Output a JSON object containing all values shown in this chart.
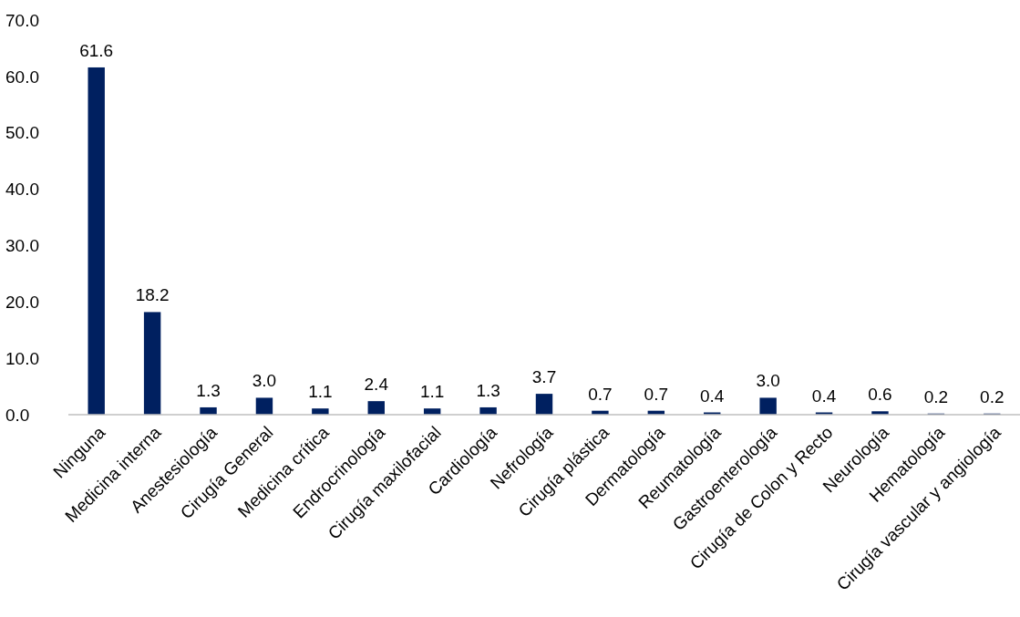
{
  "chart_data": {
    "type": "bar",
    "categories": [
      "Ninguna",
      "Medicina interna",
      "Anestesiología",
      "Cirugía General",
      "Medicina crítica",
      "Endrocrinología",
      "Cirugía maxilofacial",
      "Cardiología",
      "Nefrología",
      "Cirugía plástica",
      "Dermatología",
      "Reumatología",
      "Gastroenterología",
      "Cirugía de Colon y Recto",
      "Neurología",
      "Hematología",
      "Cirugía vascular y angiología"
    ],
    "values": [
      61.6,
      18.2,
      1.3,
      3.0,
      1.1,
      2.4,
      1.1,
      1.3,
      3.7,
      0.7,
      0.7,
      0.4,
      3.0,
      0.4,
      0.6,
      0.2,
      0.2
    ],
    "value_labels": [
      "61.6",
      "18.2",
      "1.3",
      "3.0",
      "1.1",
      "2.4",
      "1.1",
      "1.3",
      "3.7",
      "0.7",
      "0.7",
      "0.4",
      "3.0",
      "0.4",
      "0.6",
      "0.2",
      "0.2"
    ],
    "color": "#002060",
    "ylim": [
      0,
      70
    ],
    "yticks": [
      {
        "value": 0,
        "label": "0.0"
      },
      {
        "value": 10,
        "label": "10.0"
      },
      {
        "value": 20,
        "label": "20.0"
      },
      {
        "value": 30,
        "label": "30.0"
      },
      {
        "value": 40,
        "label": "40.0"
      },
      {
        "value": 50,
        "label": "50.0"
      },
      {
        "value": 60,
        "label": "60.0"
      },
      {
        "value": 70,
        "label": "70.0"
      }
    ],
    "grid": false
  }
}
